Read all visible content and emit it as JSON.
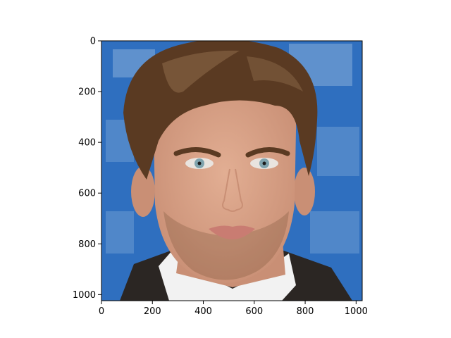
{
  "figure": {
    "subject": "portrait-photo",
    "background_color": "#ffffff",
    "axes_color": "#000000"
  },
  "image": {
    "colors": {
      "backdrop_blue": "#2f6fbf",
      "backdrop_light": "#8fb4dc",
      "skin": "#e2ae93",
      "skin_shadow": "#c98f75",
      "hair": "#5a3a22",
      "hair_light": "#8a6848",
      "iris": "#7fa3ad",
      "lips": "#c97c72",
      "collar_white": "#f2f2f2",
      "sweater_dark": "#2b2623"
    }
  },
  "axes": {
    "x": {
      "min": 0,
      "max": 1023,
      "ticks": [
        0,
        200,
        400,
        600,
        800,
        1000
      ]
    },
    "y": {
      "min": 0,
      "max": 1023,
      "ticks": [
        0,
        200,
        400,
        600,
        800,
        1000
      ],
      "inverted": true
    }
  }
}
